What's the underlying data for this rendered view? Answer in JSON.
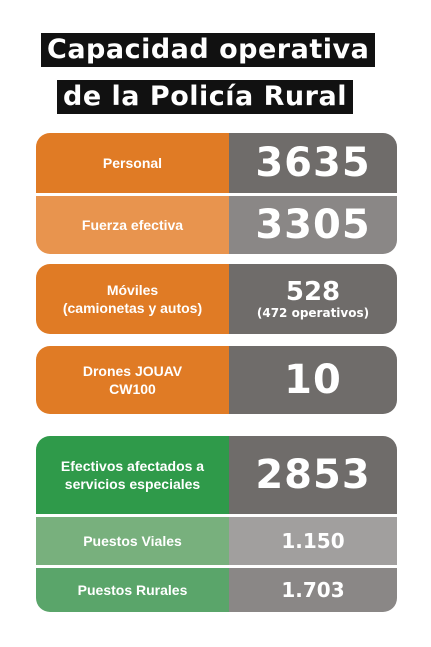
{
  "title": {
    "line1": "Capacidad operativa",
    "line2": "de la Policía Rural"
  },
  "stats": {
    "personal": {
      "label": "Personal",
      "value": "3635"
    },
    "fuerza_efectiva": {
      "label": "Fuerza efectiva",
      "value": "3305"
    },
    "moviles": {
      "label_line1": "Móviles",
      "label_line2": "(camionetas y autos)",
      "value": "528",
      "note": "(472 operativos)"
    },
    "drones": {
      "label_line1": "Drones JOUAV",
      "label_line2": "CW100",
      "value": "10"
    },
    "efectivos": {
      "label_line1": "Efectivos afectados a",
      "label_line2": "servicios especiales",
      "value": "2853"
    },
    "puestos_viales": {
      "label": "Puestos Viales",
      "value": "1.150"
    },
    "puestos_rurales": {
      "label": "Puestos Rurales",
      "value": "1.703"
    }
  },
  "colors": {
    "orange": "#e07b25",
    "orange_light": "#e8944e",
    "gray_dark": "#6f6c6a",
    "gray_mid": "#8a8786",
    "gray_light": "#a19f9e",
    "green_dark": "#2f9a4a",
    "green_light": "#78b07d",
    "green_mid": "#5aa56a"
  }
}
